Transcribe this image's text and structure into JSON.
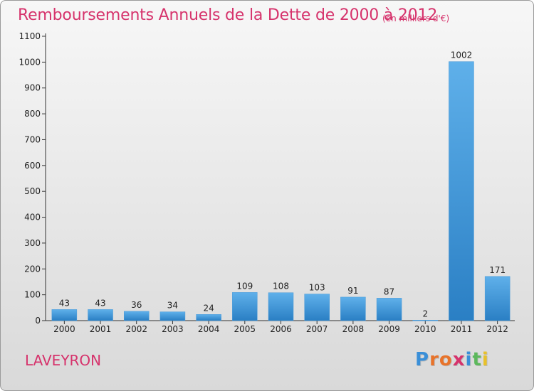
{
  "title": "Remboursements Annuels de la Dette de 2000 à 2012",
  "subtitle": "(en milliers d'€)",
  "commune": "LAVEYRON",
  "logo": {
    "text": "Proxiti",
    "letters": [
      {
        "ch": "P",
        "color": "#3a8fd8"
      },
      {
        "ch": "r",
        "color": "#e8732a"
      },
      {
        "ch": "o",
        "color": "#e8732a"
      },
      {
        "ch": "x",
        "color": "#d6336c"
      },
      {
        "ch": "i",
        "color": "#3a8fd8"
      },
      {
        "ch": "t",
        "color": "#5cb85c"
      },
      {
        "ch": "i",
        "color": "#e8c12a"
      }
    ]
  },
  "colors": {
    "accent": "#d6336c",
    "bar_light": "#5fb0ea",
    "bar_dark": "#2a7fc4"
  },
  "chart_data": {
    "type": "bar",
    "categories": [
      "2000",
      "2001",
      "2002",
      "2003",
      "2004",
      "2005",
      "2006",
      "2007",
      "2008",
      "2009",
      "2010",
      "2011",
      "2012"
    ],
    "values": [
      43,
      43,
      36,
      34,
      24,
      109,
      108,
      103,
      91,
      87,
      2,
      1002,
      171
    ],
    "ylim": [
      0,
      1100
    ],
    "yticks": [
      0,
      100,
      200,
      300,
      400,
      500,
      600,
      700,
      800,
      900,
      1000,
      1100
    ],
    "grid": false,
    "legend": "none"
  }
}
